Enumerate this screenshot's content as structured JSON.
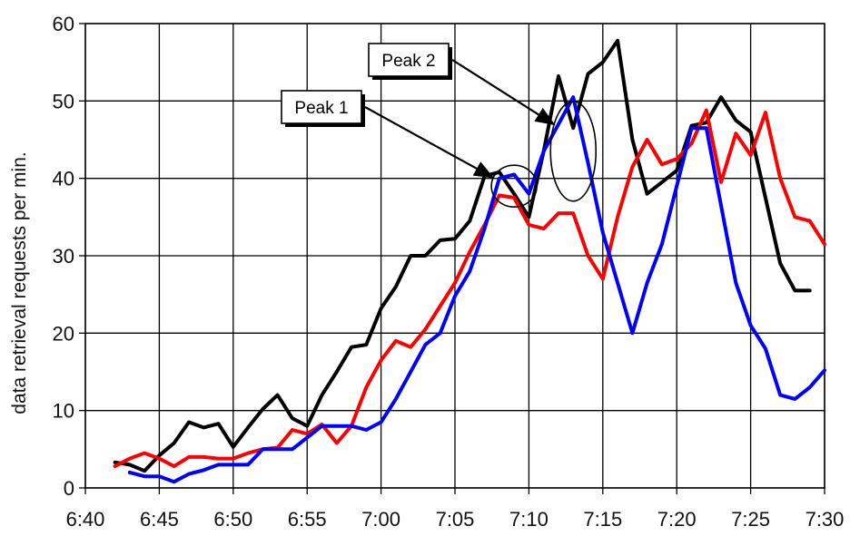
{
  "chart_data": {
    "type": "line",
    "title": "",
    "xlabel": "",
    "ylabel": "data retrieval requests per min.",
    "x_ticks": [
      "6:40",
      "6:45",
      "6:50",
      "6:55",
      "7:00",
      "7:05",
      "7:10",
      "7:15",
      "7:20",
      "7:25",
      "7:30"
    ],
    "y_ticks": [
      "0",
      "10",
      "20",
      "30",
      "40",
      "50",
      "60"
    ],
    "xlim_minutes": [
      400,
      450
    ],
    "ylim": [
      0,
      60
    ],
    "grid": true,
    "legend": "none",
    "series": [
      {
        "color": "#000000",
        "points": [
          [
            "6:42",
            3.3
          ],
          [
            "6:43",
            3.0
          ],
          [
            "6:44",
            2.2
          ],
          [
            "6:45",
            4.2
          ],
          [
            "6:46",
            5.8
          ],
          [
            "6:47",
            8.5
          ],
          [
            "6:48",
            7.8
          ],
          [
            "6:49",
            8.3
          ],
          [
            "6:50",
            5.3
          ],
          [
            "6:51",
            7.8
          ],
          [
            "6:52",
            10.2
          ],
          [
            "6:53",
            12.0
          ],
          [
            "6:54",
            9.0
          ],
          [
            "6:55",
            8.0
          ],
          [
            "6:56",
            12.0
          ],
          [
            "6:57",
            15.0
          ],
          [
            "6:58",
            18.2
          ],
          [
            "6:59",
            18.5
          ],
          [
            "7:00",
            23.2
          ],
          [
            "7:01",
            26.0
          ],
          [
            "7:02",
            30.0
          ],
          [
            "7:03",
            30.0
          ],
          [
            "7:04",
            32.0
          ],
          [
            "7:05",
            32.2
          ],
          [
            "7:06",
            34.5
          ],
          [
            "7:07",
            40.3
          ],
          [
            "7:08",
            40.8
          ],
          [
            "7:09",
            38.0
          ],
          [
            "7:10",
            35.0
          ],
          [
            "7:11",
            43.5
          ],
          [
            "7:12",
            53.2
          ],
          [
            "7:13",
            46.5
          ],
          [
            "7:14",
            53.5
          ],
          [
            "7:15",
            55.0
          ],
          [
            "7:16",
            57.8
          ],
          [
            "7:17",
            45.0
          ],
          [
            "7:18",
            38.0
          ],
          [
            "7:19",
            39.5
          ],
          [
            "7:20",
            41.0
          ],
          [
            "7:21",
            46.8
          ],
          [
            "7:22",
            47.2
          ],
          [
            "7:23",
            50.5
          ],
          [
            "7:24",
            47.5
          ],
          [
            "7:25",
            46.0
          ],
          [
            "7:26",
            37.5
          ],
          [
            "7:27",
            29.0
          ],
          [
            "7:28",
            25.5
          ],
          [
            "7:29",
            25.5
          ]
        ]
      },
      {
        "color": "#ff0000",
        "points": [
          [
            "6:42",
            2.8
          ],
          [
            "6:43",
            3.8
          ],
          [
            "6:44",
            4.5
          ],
          [
            "6:45",
            3.8
          ],
          [
            "6:46",
            2.8
          ],
          [
            "6:47",
            4.0
          ],
          [
            "6:48",
            4.0
          ],
          [
            "6:49",
            3.8
          ],
          [
            "6:50",
            3.8
          ],
          [
            "6:51",
            4.5
          ],
          [
            "6:52",
            5.0
          ],
          [
            "6:53",
            5.2
          ],
          [
            "6:54",
            7.5
          ],
          [
            "6:55",
            7.0
          ],
          [
            "6:56",
            8.2
          ],
          [
            "6:57",
            5.8
          ],
          [
            "6:58",
            8.0
          ],
          [
            "6:59",
            13.0
          ],
          [
            "7:00",
            16.5
          ],
          [
            "7:01",
            19.0
          ],
          [
            "7:02",
            18.2
          ],
          [
            "7:03",
            20.5
          ],
          [
            "7:04",
            23.5
          ],
          [
            "7:05",
            26.5
          ],
          [
            "7:06",
            30.5
          ],
          [
            "7:07",
            34.0
          ],
          [
            "7:08",
            37.8
          ],
          [
            "7:09",
            37.5
          ],
          [
            "7:10",
            34.0
          ],
          [
            "7:11",
            33.5
          ],
          [
            "7:12",
            35.5
          ],
          [
            "7:13",
            35.5
          ],
          [
            "7:14",
            30.0
          ],
          [
            "7:15",
            27.0
          ],
          [
            "7:16",
            35.0
          ],
          [
            "7:17",
            41.5
          ],
          [
            "7:18",
            45.0
          ],
          [
            "7:19",
            41.8
          ],
          [
            "7:20",
            42.5
          ],
          [
            "7:21",
            44.5
          ],
          [
            "7:22",
            48.8
          ],
          [
            "7:23",
            39.5
          ],
          [
            "7:24",
            45.8
          ],
          [
            "7:25",
            43.0
          ],
          [
            "7:26",
            48.5
          ],
          [
            "7:27",
            40.0
          ],
          [
            "7:28",
            35.0
          ],
          [
            "7:29",
            34.5
          ],
          [
            "7:30",
            31.5
          ]
        ]
      },
      {
        "color": "#0000ff",
        "points": [
          [
            "6:43",
            2.0
          ],
          [
            "6:44",
            1.5
          ],
          [
            "6:45",
            1.5
          ],
          [
            "6:46",
            0.8
          ],
          [
            "6:47",
            1.8
          ],
          [
            "6:48",
            2.3
          ],
          [
            "6:49",
            3.0
          ],
          [
            "6:50",
            3.0
          ],
          [
            "6:51",
            3.0
          ],
          [
            "6:52",
            5.0
          ],
          [
            "6:53",
            5.0
          ],
          [
            "6:54",
            5.0
          ],
          [
            "6:55",
            6.5
          ],
          [
            "6:56",
            8.0
          ],
          [
            "6:57",
            8.0
          ],
          [
            "6:58",
            8.0
          ],
          [
            "6:59",
            7.5
          ],
          [
            "7:00",
            8.5
          ],
          [
            "7:01",
            11.5
          ],
          [
            "7:02",
            15.0
          ],
          [
            "7:03",
            18.5
          ],
          [
            "7:04",
            20.0
          ],
          [
            "7:05",
            24.8
          ],
          [
            "7:06",
            28.0
          ],
          [
            "7:07",
            33.5
          ],
          [
            "7:08",
            40.0
          ],
          [
            "7:09",
            40.5
          ],
          [
            "7:10",
            38.0
          ],
          [
            "7:11",
            43.5
          ],
          [
            "7:12",
            47.0
          ],
          [
            "7:13",
            50.5
          ],
          [
            "7:14",
            42.0
          ],
          [
            "7:15",
            33.0
          ],
          [
            "7:16",
            26.5
          ],
          [
            "7:17",
            20.0
          ],
          [
            "7:18",
            26.5
          ],
          [
            "7:19",
            31.5
          ],
          [
            "7:20",
            39.0
          ],
          [
            "7:21",
            46.5
          ],
          [
            "7:22",
            46.5
          ],
          [
            "7:23",
            36.5
          ],
          [
            "7:24",
            26.5
          ],
          [
            "7:25",
            21.0
          ],
          [
            "7:26",
            18.0
          ],
          [
            "7:27",
            12.0
          ],
          [
            "7:28",
            11.5
          ],
          [
            "7:29",
            13.0
          ],
          [
            "7:30",
            15.2
          ]
        ]
      }
    ],
    "annotations": [
      {
        "text": "Peak 1",
        "target_time": "7:09",
        "target_value": 39
      },
      {
        "text": "Peak 2",
        "target_time": "7:13",
        "target_value": 43.5
      }
    ]
  }
}
